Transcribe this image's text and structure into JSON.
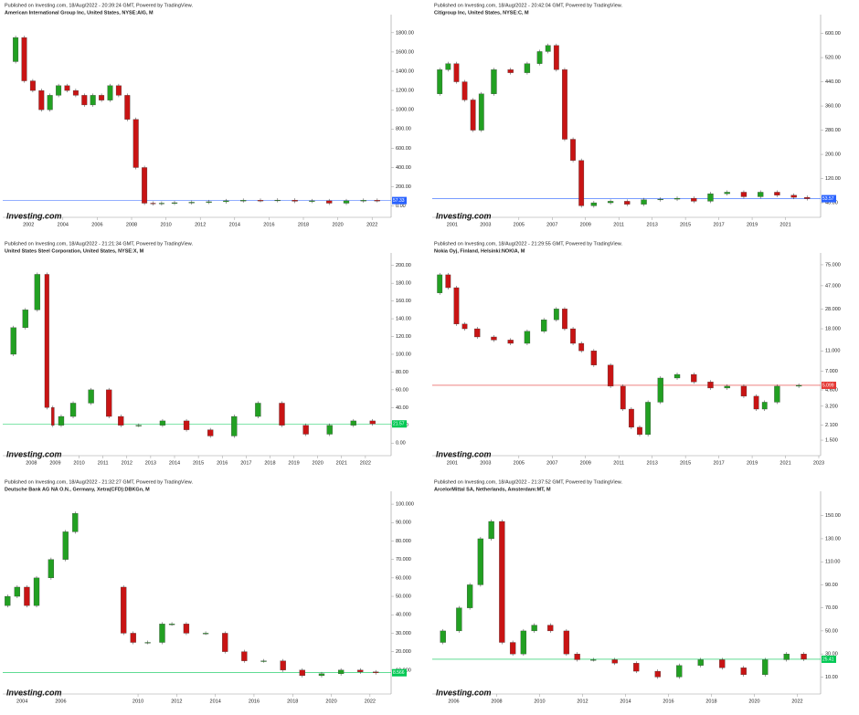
{
  "chart_data": [
    {
      "type": "candlestick",
      "published": "Published on Investing.com, 18/Aug/2022 - 20:39:24 GMT, Powered by TradingView.",
      "title": "American International Group Inc, United States, NYSE:AIG, M",
      "logo": "Investing.com",
      "x": [
        2001,
        2001.5,
        2002,
        2002.5,
        2003,
        2003.5,
        2004,
        2004.5,
        2005,
        2005.5,
        2006,
        2006.5,
        2007,
        2007.5,
        2008,
        2008.5,
        2009,
        2009.5,
        2010,
        2011,
        2012,
        2013,
        2014,
        2015,
        2016,
        2017,
        2018,
        2019,
        2020,
        2021,
        2022,
        2022.6
      ],
      "values": [
        1500,
        1750,
        1300,
        1200,
        1000,
        1150,
        1250,
        1200,
        1150,
        1050,
        1150,
        1100,
        1250,
        1150,
        900,
        400,
        30,
        25,
        30,
        35,
        40,
        45,
        55,
        60,
        58,
        62,
        50,
        55,
        30,
        55,
        60,
        57.33
      ],
      "xlim": [
        2000.5,
        2023
      ],
      "xticks": [
        2002,
        2004,
        2006,
        2008,
        2010,
        2012,
        2014,
        2016,
        2018,
        2020,
        2022
      ],
      "ylim": [
        -60,
        1950
      ],
      "yticks": [
        {
          "value": 0,
          "label": "0.00"
        },
        {
          "value": 200,
          "label": "200.00"
        },
        {
          "value": 400,
          "label": "400.00"
        },
        {
          "value": 600,
          "label": "600.00"
        },
        {
          "value": 800,
          "label": "800.00"
        },
        {
          "value": 1000,
          "label": "1000.00"
        },
        {
          "value": 1200,
          "label": "1200.00"
        },
        {
          "value": 1400,
          "label": "1400.00"
        },
        {
          "value": 1600,
          "label": "1600.00"
        },
        {
          "value": 1800,
          "label": "1800.00"
        }
      ],
      "log_scale": false,
      "price_color": "#2962ff",
      "up_color": "#22a022",
      "down_color": "#c81414"
    },
    {
      "type": "candlestick",
      "published": "Published on Investing.com, 18/Aug/2022 - 20:42:04 GMT, Powered by TradingView.",
      "title": "Citigroup Inc, United States, NYSE:C, M",
      "logo": "Investing.com",
      "x": [
        2000,
        2000.5,
        2001,
        2001.5,
        2002,
        2002.5,
        2003,
        2004,
        2005,
        2006,
        2006.5,
        2007,
        2007.5,
        2008,
        2008.5,
        2009,
        2010,
        2011,
        2012,
        2013,
        2014,
        2015,
        2016,
        2017,
        2018,
        2019,
        2020,
        2021,
        2022,
        2022.6
      ],
      "values": [
        400,
        480,
        500,
        440,
        380,
        280,
        400,
        480,
        470,
        500,
        540,
        560,
        480,
        250,
        180,
        30,
        40,
        45,
        35,
        50,
        52,
        55,
        45,
        70,
        75,
        60,
        75,
        65,
        58,
        53.57
      ],
      "xlim": [
        1999.8,
        2023
      ],
      "xticks": [
        2001,
        2003,
        2005,
        2007,
        2009,
        2011,
        2013,
        2015,
        2017,
        2019,
        2021
      ],
      "ylim": [
        10,
        650
      ],
      "yticks": [
        {
          "value": 40,
          "label": "40.00"
        },
        {
          "value": 120,
          "label": "120.00"
        },
        {
          "value": 200,
          "label": "200.00"
        },
        {
          "value": 280,
          "label": "280.00"
        },
        {
          "value": 360,
          "label": "360.00"
        },
        {
          "value": 440,
          "label": "440.00"
        },
        {
          "value": 520,
          "label": "520.00"
        },
        {
          "value": 600,
          "label": "600.00"
        }
      ],
      "log_scale": false,
      "price_color": "#2962ff",
      "up_color": "#22a022",
      "down_color": "#c81414"
    },
    {
      "type": "candlestick",
      "published": "Published on Investing.com, 18/Aug/2022 - 21:21:34 GMT, Powered by TradingView.",
      "title": "United States Steel Corporation, United States, NYSE:X, M",
      "logo": "Investing.com",
      "x": [
        2007,
        2007.5,
        2008,
        2008.5,
        2008.8,
        2009,
        2009.5,
        2010,
        2011,
        2011.5,
        2012,
        2013,
        2014,
        2015,
        2016,
        2017,
        2018,
        2019,
        2020,
        2021,
        2022,
        2022.6
      ],
      "values": [
        100,
        130,
        150,
        190,
        40,
        20,
        30,
        45,
        60,
        30,
        20,
        20,
        25,
        15,
        8,
        30,
        45,
        20,
        10,
        20,
        25,
        21.57
      ],
      "xlim": [
        2006.8,
        2023
      ],
      "xticks": [
        2008,
        2009,
        2010,
        2011,
        2012,
        2013,
        2014,
        2015,
        2016,
        2017,
        2018,
        2019,
        2020,
        2021,
        2022
      ],
      "ylim": [
        -8,
        210
      ],
      "yticks": [
        {
          "value": 0,
          "label": "0.00"
        },
        {
          "value": 20,
          "label": "20.00"
        },
        {
          "value": 40,
          "label": "40.00"
        },
        {
          "value": 60,
          "label": "60.00"
        },
        {
          "value": 80,
          "label": "80.00"
        },
        {
          "value": 100,
          "label": "100.00"
        },
        {
          "value": 120,
          "label": "120.00"
        },
        {
          "value": 140,
          "label": "140.00"
        },
        {
          "value": 160,
          "label": "160.00"
        },
        {
          "value": 180,
          "label": "180.00"
        },
        {
          "value": 200,
          "label": "200.00"
        }
      ],
      "log_scale": false,
      "price_color": "#00c853",
      "up_color": "#22a022",
      "down_color": "#c81414"
    },
    {
      "type": "candlestick",
      "published": "Published on Investing.com, 18/Aug/2022 - 21:29:55 GMT, Powered by TradingView.",
      "title": "Nokia Oyj, Finland, Helsinki:NOKIA, M",
      "logo": "Investing.com",
      "x": [
        2000,
        2000.5,
        2001,
        2001.5,
        2002,
        2003,
        2004,
        2005,
        2006,
        2007,
        2007.5,
        2008,
        2008.5,
        2009,
        2010,
        2011,
        2011.5,
        2012,
        2012.5,
        2013,
        2014,
        2015,
        2016,
        2017,
        2018,
        2019,
        2019.5,
        2020,
        2021,
        2022.6
      ],
      "values": [
        40,
        60,
        45,
        20,
        18,
        15,
        14,
        13,
        17,
        22,
        28,
        18,
        13,
        11,
        8,
        5,
        3,
        2,
        1.7,
        3.5,
        6,
        6.5,
        5.5,
        4.8,
        5,
        4,
        3,
        3.5,
        5,
        5.099
      ],
      "xlim": [
        1999.8,
        2023
      ],
      "xticks": [
        2001,
        2003,
        2005,
        2007,
        2009,
        2011,
        2013,
        2015,
        2017,
        2019,
        2021,
        2023
      ],
      "ylim": [
        1.2,
        90
      ],
      "yticks": [
        {
          "value": 1.5,
          "label": "1.500"
        },
        {
          "value": 2.1,
          "label": "2.100"
        },
        {
          "value": 3.2,
          "label": "3.200"
        },
        {
          "value": 4.6,
          "label": "4.600"
        },
        {
          "value": 7,
          "label": "7.000"
        },
        {
          "value": 11,
          "label": "11.000"
        },
        {
          "value": 18,
          "label": "18.000"
        },
        {
          "value": 28,
          "label": "28.000"
        },
        {
          "value": 47,
          "label": "47.000"
        },
        {
          "value": 75,
          "label": "75.000"
        }
      ],
      "log_scale": true,
      "price_color": "#e53935",
      "up_color": "#22a022",
      "down_color": "#c81414"
    },
    {
      "type": "candlestick",
      "published": "Published on Investing.com, 18/Aug/2022 - 21:32:27 GMT, Powered by TradingView.",
      "title": "Deutsche Bank AG NA O.N., Germany, Xetra(CFD):DBKGn, M",
      "logo": "Investing.com",
      "x": [
        2003,
        2003.5,
        2004,
        2004.5,
        2005,
        2006,
        2006.5,
        2007,
        2008,
        2009,
        2009.5,
        2010,
        2011,
        2011.5,
        2012,
        2013,
        2014,
        2015,
        2016,
        2017,
        2018,
        2019,
        2020,
        2021,
        2022,
        2022.6
      ],
      "values": [
        45,
        50,
        55,
        45,
        60,
        70,
        85,
        95,
        null,
        55,
        30,
        25,
        25,
        35,
        35,
        30,
        30,
        20,
        15,
        15,
        10,
        7,
        8,
        10,
        9,
        8.566
      ],
      "xlim": [
        2003,
        2023
      ],
      "xticks": [
        2004,
        2006,
        2010,
        2012,
        2014,
        2016,
        2018,
        2020,
        2022
      ],
      "ylim": [
        0,
        105
      ],
      "yticks": [
        {
          "value": 10,
          "label": "10.000"
        },
        {
          "value": 20,
          "label": "20.000"
        },
        {
          "value": 30,
          "label": "30.000"
        },
        {
          "value": 40,
          "label": "40.000"
        },
        {
          "value": 50,
          "label": "50.000"
        },
        {
          "value": 60,
          "label": "60.000"
        },
        {
          "value": 70,
          "label": "70.000"
        },
        {
          "value": 80,
          "label": "80.000"
        },
        {
          "value": 90,
          "label": "90.000"
        },
        {
          "value": 100,
          "label": "100.000"
        }
      ],
      "log_scale": false,
      "price_color": "#00c853",
      "up_color": "#22a022",
      "down_color": "#c81414"
    },
    {
      "type": "candlestick",
      "published": "Published on Investing.com, 18/Aug/2022 - 21:37:52 GMT, Powered by TradingView.",
      "title": "ArcelorMittal SA, Netherlands, Amsterdam:MT, M",
      "logo": "Investing.com",
      "x": [
        2005,
        2006,
        2006.5,
        2007,
        2007.5,
        2008,
        2008.5,
        2009,
        2009.5,
        2010,
        2011,
        2011.5,
        2012,
        2013,
        2014,
        2015,
        2016,
        2017,
        2018,
        2019,
        2020,
        2021,
        2022,
        2022.6
      ],
      "values": [
        40,
        50,
        70,
        90,
        130,
        145,
        40,
        30,
        50,
        55,
        50,
        30,
        25,
        25,
        22,
        15,
        10,
        20,
        25,
        18,
        12,
        25,
        30,
        25.41
      ],
      "xlim": [
        2005,
        2023
      ],
      "xticks": [
        2006,
        2008,
        2010,
        2012,
        2014,
        2016,
        2018,
        2020,
        2022
      ],
      "ylim": [
        0,
        168
      ],
      "yticks": [
        {
          "value": 10,
          "label": "10.00"
        },
        {
          "value": 30,
          "label": "30.00"
        },
        {
          "value": 50,
          "label": "50.00"
        },
        {
          "value": 70,
          "label": "70.00"
        },
        {
          "value": 90,
          "label": "90.00"
        },
        {
          "value": 110,
          "label": "110.00"
        },
        {
          "value": 130,
          "label": "130.00"
        },
        {
          "value": 150,
          "label": "150.00"
        }
      ],
      "log_scale": false,
      "price_color": "#00c853",
      "up_color": "#22a022",
      "down_color": "#c81414"
    }
  ]
}
